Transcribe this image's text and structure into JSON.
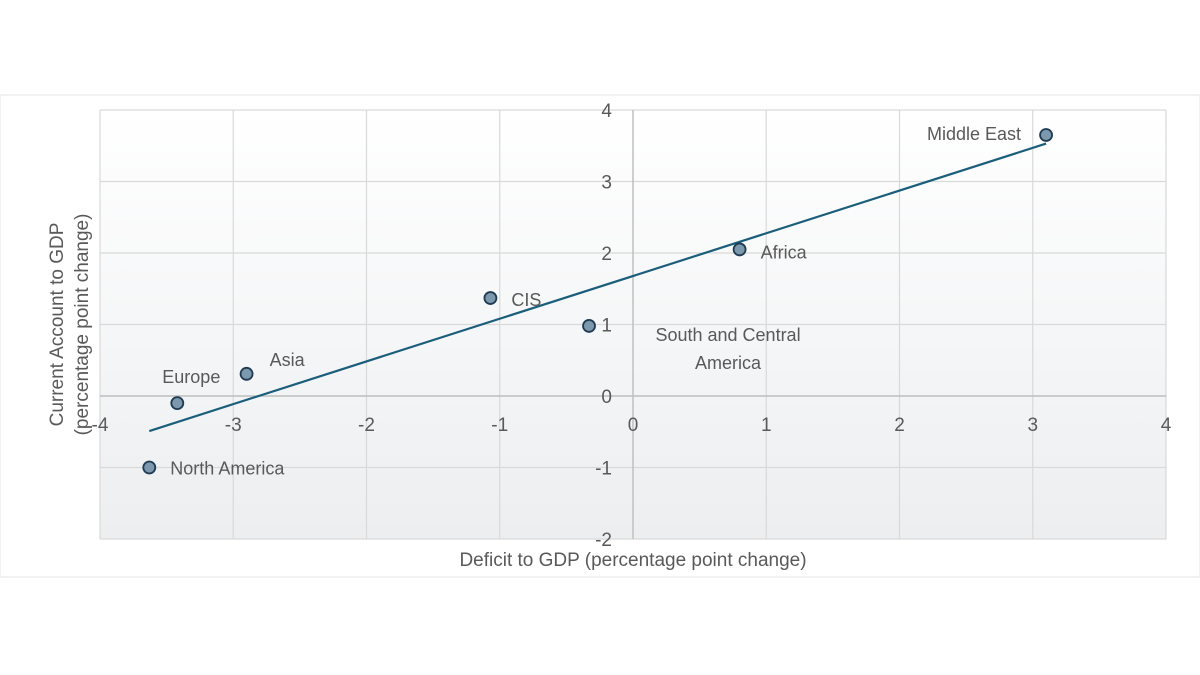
{
  "chart_data": {
    "type": "scatter",
    "xlabel": "Deficit to GDP (percentage point change)",
    "ylabel_lines": [
      "Current Account to GDP",
      "(percentage point change)"
    ],
    "xlim": [
      -4,
      4
    ],
    "ylim": [
      -2,
      4
    ],
    "x_ticks": [
      -4,
      -3,
      -2,
      -1,
      0,
      1,
      2,
      3,
      4
    ],
    "y_ticks": [
      -2,
      -1,
      0,
      1,
      2,
      3,
      4
    ],
    "grid": true,
    "points": [
      {
        "label": "Middle East",
        "x": 3.1,
        "y": 3.65
      },
      {
        "label": "Africa",
        "x": 0.8,
        "y": 2.05
      },
      {
        "label": "CIS",
        "x": -1.07,
        "y": 1.37
      },
      {
        "label": "South and Central America",
        "label_lines": [
          "South and Central",
          "America"
        ],
        "x": -0.33,
        "y": 0.98
      },
      {
        "label": "Asia",
        "x": -2.9,
        "y": 0.31
      },
      {
        "label": "Europe",
        "x": -3.42,
        "y": -0.1
      },
      {
        "label": "North America",
        "x": -3.63,
        "y": -1.0
      }
    ],
    "trendline": {
      "x": [
        -3.63,
        3.1
      ],
      "y": [
        -0.49,
        3.53
      ]
    },
    "colors": {
      "marker_fill": "#7b98ad",
      "marker_stroke": "#1f3b53",
      "trendline": "#1b5e7b",
      "grid": "#d9d9d9",
      "text": "#595959"
    }
  }
}
